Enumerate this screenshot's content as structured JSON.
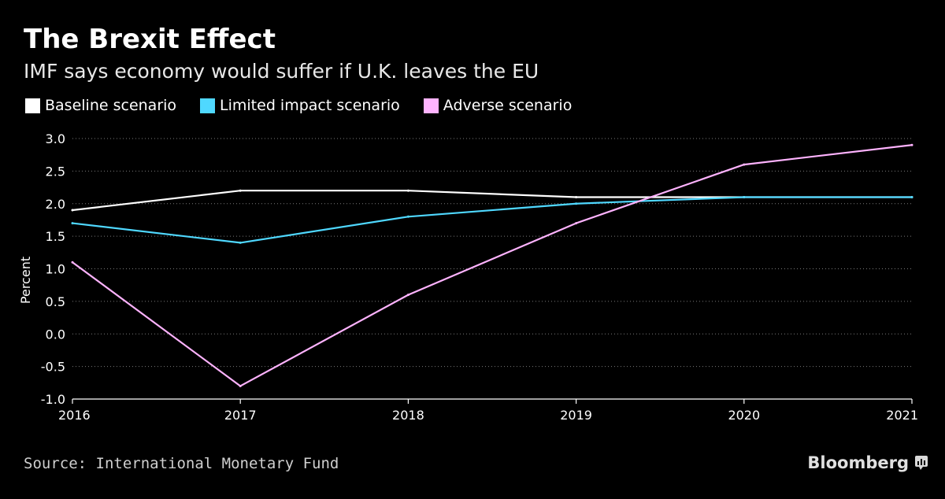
{
  "header": {
    "title": "The Brexit Effect",
    "subtitle": "IMF says economy would suffer if U.K. leaves the EU"
  },
  "colors": {
    "background": "#000000",
    "baseline": "#ffffff",
    "limited": "#4fd8ff",
    "adverse": "#ffb3ff"
  },
  "chart_data": {
    "type": "line",
    "title": "The Brexit Effect",
    "subtitle": "IMF says economy would suffer if U.K. leaves the EU",
    "xlabel": "",
    "ylabel": "Percent",
    "x": [
      2016,
      2017,
      2018,
      2019,
      2020,
      2021
    ],
    "x_tick_labels": [
      "2016",
      "2017",
      "2018",
      "2019",
      "2020",
      "2021"
    ],
    "ylim": [
      -1.0,
      3.0
    ],
    "y_ticks": [
      3.0,
      2.5,
      2.0,
      1.5,
      1.0,
      0.5,
      0.0,
      -0.5,
      -1.0
    ],
    "y_tick_labels": [
      "3.0",
      "2.5",
      "2.0",
      "1.5",
      "1.0",
      "0.5",
      "0.0",
      "-0.5",
      "-1.0"
    ],
    "grid": true,
    "legend_position": "top-left",
    "series": [
      {
        "key": "baseline",
        "name": "Baseline scenario",
        "color": "#ffffff",
        "values": [
          1.9,
          2.2,
          2.2,
          2.1,
          2.1,
          2.1
        ]
      },
      {
        "key": "limited",
        "name": "Limited impact scenario",
        "color": "#4fd8ff",
        "values": [
          1.7,
          1.4,
          1.8,
          2.0,
          2.1,
          2.1
        ]
      },
      {
        "key": "adverse",
        "name": "Adverse scenario",
        "color": "#ffb3ff",
        "values": [
          1.1,
          -0.8,
          0.6,
          1.7,
          2.6,
          2.9
        ]
      }
    ]
  },
  "footer": {
    "source": "Source: International Monetary Fund",
    "brand": "Bloomberg"
  }
}
